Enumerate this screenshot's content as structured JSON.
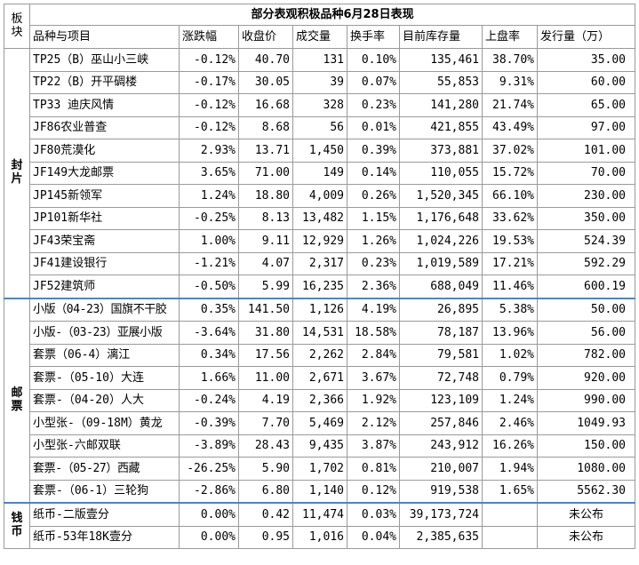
{
  "title": "部分表观积极品种6月28日表现",
  "board_header": "板块",
  "headers": [
    "品种与项目",
    "涨跌幅",
    "收盘价",
    "成交量",
    "换手率",
    "目前库存量",
    "上盘率",
    "发行量（万）"
  ],
  "colors": {
    "title": "#1f7ec8",
    "header": "#c0392b",
    "category": "#1f6fbf",
    "up": "#e02020",
    "down": "#1a9a3c",
    "separator": "#4a86c5"
  },
  "groups": [
    {
      "category": "封片",
      "rows": [
        {
          "name": "TP25（B）巫山小三峡",
          "change": "-0.12%",
          "dir": "down",
          "close": "40.70",
          "volume": "131",
          "turnover": "0.10%",
          "stock": "135,461",
          "listing": "38.70%",
          "issue": "35.00"
        },
        {
          "name": "TP22（B）开平碉楼",
          "change": "-0.17%",
          "dir": "down",
          "close": "30.05",
          "volume": "39",
          "turnover": "0.07%",
          "stock": "55,853",
          "listing": "9.31%",
          "issue": "60.00"
        },
        {
          "name": "TP33 迪庆风情",
          "change": "-0.12%",
          "dir": "down",
          "close": "16.68",
          "volume": "328",
          "turnover": "0.23%",
          "stock": "141,280",
          "listing": "21.74%",
          "issue": "65.00"
        },
        {
          "name": "JF86农业普查",
          "change": "-0.12%",
          "dir": "down",
          "close": "8.68",
          "volume": "56",
          "turnover": "0.01%",
          "stock": "421,855",
          "listing": "43.49%",
          "issue": "97.00"
        },
        {
          "name": "JF80荒漠化",
          "change": "2.93%",
          "dir": "up",
          "close": "13.71",
          "volume": "1,450",
          "turnover": "0.39%",
          "stock": "373,881",
          "listing": "37.02%",
          "issue": "101.00"
        },
        {
          "name": "JF149大龙邮票",
          "change": "3.65%",
          "dir": "up",
          "close": "71.00",
          "volume": "149",
          "turnover": "0.14%",
          "stock": "110,055",
          "listing": "15.72%",
          "issue": "70.00"
        },
        {
          "name": "JP145新领军",
          "change": "1.24%",
          "dir": "up",
          "close": "18.80",
          "volume": "4,009",
          "turnover": "0.26%",
          "stock": "1,520,345",
          "listing": "66.10%",
          "issue": "230.00"
        },
        {
          "name": "JP101新华社",
          "change": "-0.25%",
          "dir": "down",
          "close": "8.13",
          "volume": "13,482",
          "turnover": "1.15%",
          "stock": "1,176,648",
          "listing": "33.62%",
          "issue": "350.00"
        },
        {
          "name": "JF43荣宝斋",
          "change": "1.00%",
          "dir": "up",
          "close": "9.11",
          "volume": "12,929",
          "turnover": "1.26%",
          "stock": "1,024,226",
          "listing": "19.53%",
          "issue": "524.39"
        },
        {
          "name": "JF41建设银行",
          "change": "-1.21%",
          "dir": "down",
          "close": "4.07",
          "volume": "2,317",
          "turnover": "0.23%",
          "stock": "1,019,589",
          "listing": "17.21%",
          "issue": "592.29"
        },
        {
          "name": "JF52建筑师",
          "change": "-0.50%",
          "dir": "down",
          "close": "5.99",
          "volume": "16,235",
          "turnover": "2.36%",
          "stock": "688,049",
          "listing": "11.46%",
          "issue": "600.19"
        }
      ]
    },
    {
      "category": "邮票",
      "rows": [
        {
          "name": "小版（04-23）国旗不干胶",
          "change": "0.35%",
          "dir": "up",
          "close": "141.50",
          "volume": "1,126",
          "turnover": "4.19%",
          "stock": "26,895",
          "listing": "5.38%",
          "issue": "50.00",
          "small": true
        },
        {
          "name": "小版-（03-23）亚展小版",
          "change": "-3.64%",
          "dir": "down",
          "close": "31.80",
          "volume": "14,531",
          "turnover": "18.58%",
          "stock": "78,187",
          "listing": "13.96%",
          "issue": "56.00",
          "small": true
        },
        {
          "name": "套票（06-4）漓江",
          "change": "0.34%",
          "dir": "up",
          "close": "17.56",
          "volume": "2,262",
          "turnover": "2.84%",
          "stock": "79,581",
          "listing": "1.02%",
          "issue": "782.00"
        },
        {
          "name": "套票-（05-10）大连",
          "change": "1.66%",
          "dir": "up",
          "close": "11.00",
          "volume": "2,671",
          "turnover": "3.67%",
          "stock": "72,748",
          "listing": "0.79%",
          "issue": "920.00"
        },
        {
          "name": "套票-（04-20）人大",
          "change": "-0.24%",
          "dir": "down",
          "close": "4.19",
          "volume": "2,366",
          "turnover": "1.92%",
          "stock": "123,109",
          "listing": "1.24%",
          "issue": "990.00"
        },
        {
          "name": "小型张-（09-18M）黄龙",
          "change": "-0.39%",
          "dir": "down",
          "close": "7.70",
          "volume": "5,469",
          "turnover": "2.12%",
          "stock": "257,846",
          "listing": "2.46%",
          "issue": "1049.93"
        },
        {
          "name": "小型张-六邮双联",
          "change": "-3.89%",
          "dir": "down",
          "close": "28.43",
          "volume": "9,435",
          "turnover": "3.87%",
          "stock": "243,912",
          "listing": "16.26%",
          "issue": "150.00"
        },
        {
          "name": "套票-（05-27）西藏",
          "change": "-26.25%",
          "dir": "down",
          "close": "5.90",
          "volume": "1,702",
          "turnover": "0.81%",
          "stock": "210,007",
          "listing": "1.94%",
          "issue": "1080.00",
          "small": true
        },
        {
          "name": "套票-（06-1）三轮狗",
          "change": "-2.86%",
          "dir": "down",
          "close": "6.80",
          "volume": "1,140",
          "turnover": "0.12%",
          "stock": "919,538",
          "listing": "1.65%",
          "issue": "5562.30"
        }
      ]
    },
    {
      "category": "钱币",
      "rows": [
        {
          "name": "纸币-二版壹分",
          "change": "0.00%",
          "dir": "flat",
          "close": "0.42",
          "volume": "11,474",
          "turnover": "0.03%",
          "stock": "39,173,724",
          "listing": "",
          "issue": "未公布"
        },
        {
          "name": "纸币-53年18K壹分",
          "change": "0.00%",
          "dir": "flat",
          "close": "0.95",
          "volume": "1,016",
          "turnover": "0.04%",
          "stock": "2,385,635",
          "listing": "",
          "issue": "未公布"
        }
      ]
    }
  ]
}
